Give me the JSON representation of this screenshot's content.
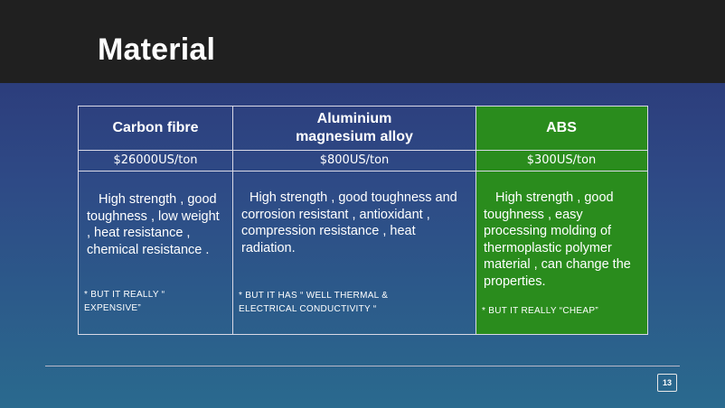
{
  "slide": {
    "title": "Material",
    "page_number": "13"
  },
  "table": {
    "columns": [
      {
        "name": "Carbon  fibre",
        "price": "$26000US/ton",
        "description": "High strength , good toughness , low weight , heat resistance , chemical resistance .",
        "note": "* BUT IT REALLY “ EXPENSIVE”"
      },
      {
        "name_line1": "Aluminium",
        "name_line2": "magnesium  alloy",
        "price": "$800US/ton",
        "description": "High strength , good toughness and corrosion resistant , antioxidant , compression resistance , heat radiation.",
        "note": "* BUT   IT   HAS “ WELL THERMAL & ELECTRICAL CONDUCTIVITY “"
      },
      {
        "name": "ABS",
        "price": "$300US/ton",
        "description": "High strength , good toughness , easy processing molding of thermoplastic polymer material , can change the properties.",
        "note": "* BUT IT REALLY “CHEAP”"
      }
    ]
  },
  "colors": {
    "title_bar": "#202020",
    "background_top": "#2b3374",
    "background_bottom": "#2a6a8e",
    "highlight_column": "#2a8c1d"
  }
}
